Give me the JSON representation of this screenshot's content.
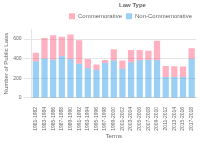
{
  "chart_data": {
    "type": "bar",
    "stacked": true,
    "xlabel": "Terms",
    "ylabel": "Number of Public Laws",
    "categories": [
      "1981-1982",
      "1983-1984",
      "1985-1986",
      "1987-1988",
      "1989-1990",
      "1991-1992",
      "1993-1994",
      "1995-1996",
      "1997-1998",
      "1999-2000",
      "2001-2002",
      "2003-2004",
      "2005-2006",
      "2007-2008",
      "2009-2010",
      "2011-2012",
      "2013-2014",
      "2015-2016",
      "2017-2018"
    ],
    "series": [
      {
        "name": "Non-Commemorative",
        "values": [
          373,
          401,
          389,
          424,
          395,
          347,
          302,
          285,
          356,
          381,
          296,
          362,
          383,
          385,
          383,
          214,
          212,
          214,
          396
        ]
      },
      {
        "name": "Commemorative",
        "values": [
          88,
          210,
          250,
          200,
          250,
          240,
          95,
          55,
          30,
          115,
          85,
          125,
          105,
          95,
          200,
          110,
          110,
          105,
          110
        ]
      }
    ],
    "legend_title": "Law Type",
    "legend": "upper right",
    "ylim": [
      0,
      700
    ],
    "yticks": [
      0,
      200,
      400,
      600
    ],
    "grid": true
  }
}
